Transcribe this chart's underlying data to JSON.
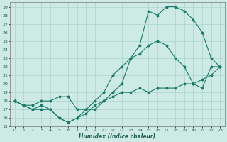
{
  "xlabel": "Humidex (Indice chaleur)",
  "bg_color": "#ceeae4",
  "grid_color": "#aad4cc",
  "line_color": "#1a7a6a",
  "xlim": [
    -0.5,
    23.5
  ],
  "ylim": [
    15,
    29.5
  ],
  "xticks": [
    0,
    1,
    2,
    3,
    4,
    5,
    6,
    7,
    8,
    9,
    10,
    11,
    12,
    13,
    14,
    15,
    16,
    17,
    18,
    19,
    20,
    21,
    22,
    23
  ],
  "yticks": [
    15,
    16,
    17,
    18,
    19,
    20,
    21,
    22,
    23,
    24,
    25,
    26,
    27,
    28,
    29
  ],
  "curve1_x": [
    0,
    1,
    2,
    3,
    4,
    5,
    6,
    7,
    8,
    9,
    10,
    11,
    12,
    13,
    14,
    15,
    16,
    17,
    18,
    19,
    20,
    21,
    22,
    23
  ],
  "curve1_y": [
    18,
    17.5,
    17,
    17,
    17,
    16,
    15.5,
    16,
    16.5,
    17.5,
    18,
    18.5,
    19,
    19,
    19.5,
    19,
    19.5,
    19.5,
    19.5,
    20,
    20,
    20.5,
    21,
    22
  ],
  "curve2_x": [
    0,
    1,
    2,
    3,
    4,
    5,
    6,
    7,
    8,
    9,
    10,
    11,
    12,
    13,
    14,
    15,
    16,
    17,
    18,
    19,
    20,
    21,
    22,
    23
  ],
  "curve2_y": [
    18,
    17.5,
    17.5,
    18,
    18,
    18.5,
    18.5,
    17,
    17,
    18,
    19,
    21,
    22,
    23,
    23.5,
    24.5,
    25,
    24.5,
    23,
    22,
    20,
    19.5,
    22,
    22
  ],
  "curve3_x": [
    0,
    1,
    2,
    3,
    4,
    5,
    6,
    7,
    8,
    9,
    10,
    11,
    12,
    13,
    14,
    15,
    16,
    17,
    18,
    19,
    20,
    21,
    22,
    23
  ],
  "curve3_y": [
    18,
    17.5,
    17,
    17.5,
    17,
    16,
    15.5,
    16,
    17,
    17,
    18,
    19,
    20,
    23,
    24.5,
    28.5,
    28,
    29,
    29,
    28.5,
    27.5,
    26,
    23,
    22
  ]
}
